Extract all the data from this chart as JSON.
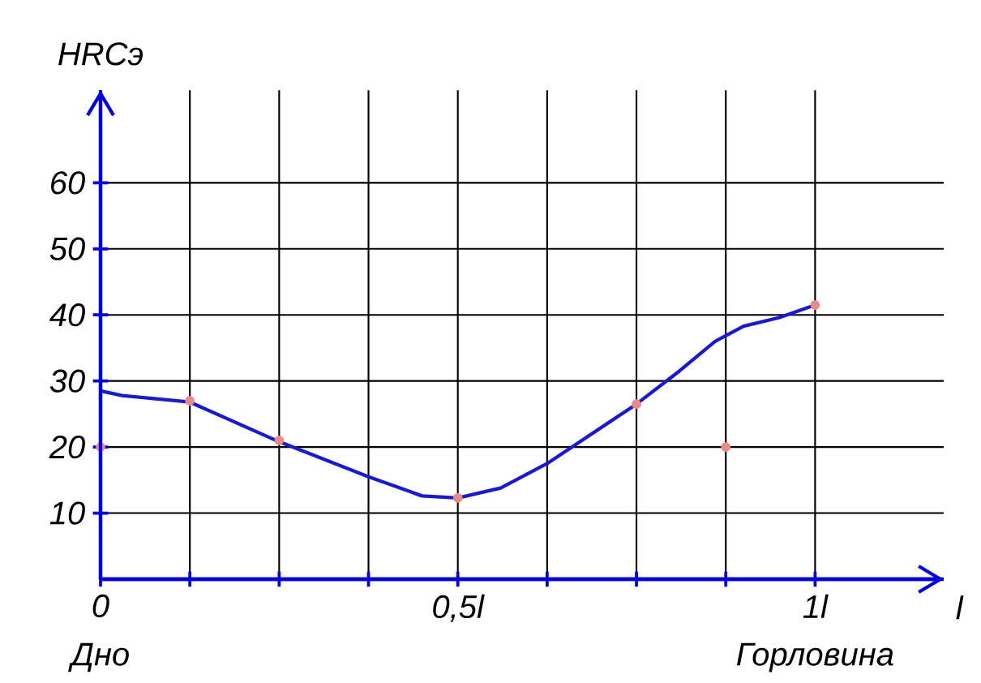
{
  "chart_data": {
    "type": "line",
    "xlabel": "l",
    "ylabel": "HRCэ",
    "xlim": [
      0,
      1.18
    ],
    "ylim": [
      0,
      74
    ],
    "xticks": [
      {
        "value": 0,
        "label": "0"
      },
      {
        "value": 0.125,
        "label": null
      },
      {
        "value": 0.25,
        "label": null
      },
      {
        "value": 0.375,
        "label": null
      },
      {
        "value": 0.5,
        "label": "0,5l"
      },
      {
        "value": 0.625,
        "label": null
      },
      {
        "value": 0.75,
        "label": null
      },
      {
        "value": 0.875,
        "label": null
      },
      {
        "value": 1,
        "label": "1l"
      }
    ],
    "yticks": [
      10,
      20,
      30,
      40,
      50,
      60
    ],
    "grid": true,
    "series": [
      {
        "color": "#1a1acc",
        "line_style": "solid",
        "marker": "none",
        "x": [
          0,
          0.03,
          0.125,
          0.25,
          0.375,
          0.45,
          0.5,
          0.56,
          0.625,
          0.75,
          0.81,
          0.86,
          0.9,
          0.95,
          1
        ],
        "values": [
          28.5,
          27.8,
          26.8,
          20.8,
          15.5,
          12.6,
          12.3,
          13.8,
          17.5,
          26.5,
          31.5,
          36,
          38.3,
          39.6,
          41.5
        ]
      },
      {
        "type": "scatter",
        "color": "#e88a8a",
        "marker": "circle",
        "x": [
          0,
          0.125,
          0.25,
          0.5,
          0.75,
          0.875,
          1
        ],
        "values": [
          20,
          27,
          21,
          12.3,
          26.5,
          20,
          41.5
        ]
      }
    ],
    "annotations": [
      "Дно",
      "Горловина"
    ]
  }
}
